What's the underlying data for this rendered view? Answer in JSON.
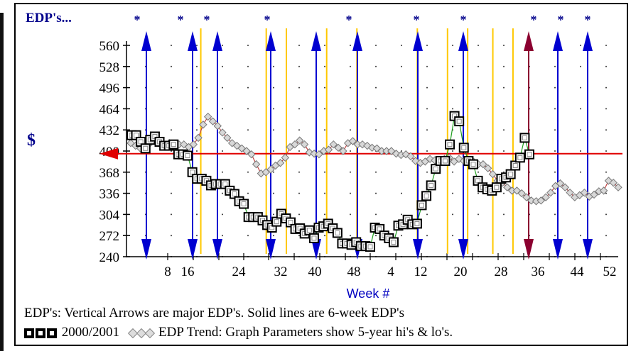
{
  "chart_data": {
    "type": "line",
    "title": "EDP's...",
    "ylabel": "$",
    "xlabel": "Week #",
    "ylim": [
      240,
      560
    ],
    "xlim": [
      0,
      52
    ],
    "y_ticks": [
      "560",
      "528",
      "496",
      "464",
      "432",
      "400",
      "368",
      "336",
      "304",
      "272",
      "240"
    ],
    "x_ticks": [
      "8",
      "16",
      "24",
      "32",
      "40",
      "48",
      "4",
      "12",
      "20",
      "28",
      "36",
      "44",
      "52"
    ],
    "reference_line": 396,
    "star_marks": [
      "*",
      "*",
      "*",
      "*",
      "*",
      "*",
      "*",
      "*",
      "*",
      "*",
      "*"
    ],
    "colors": {
      "title": "#00008b",
      "arrow": "#0000d0",
      "arrow_major": "#8b0030",
      "vline": "#ffc800",
      "reference": "#e00000",
      "xlabel": "#0000c0"
    },
    "series": [
      {
        "name": "2000/2001",
        "marker": "square",
        "values": [
          424,
          424,
          414,
          404,
          417,
          422,
          414,
          408,
          408,
          410,
          395,
          395,
          393,
          368,
          358,
          358,
          355,
          348,
          350,
          350,
          350,
          340,
          335,
          324,
          320,
          300,
          300,
          300,
          295,
          288,
          284,
          293,
          305,
          298,
          292,
          282,
          283,
          275,
          280,
          268,
          284,
          286,
          290,
          283,
          276,
          260,
          260,
          258,
          262,
          256,
          256,
          255,
          284,
          282,
          272,
          268,
          262,
          287,
          289,
          296,
          289,
          290,
          318,
          332,
          348,
          373,
          385,
          385,
          410,
          453,
          445,
          405,
          385,
          380,
          355,
          345,
          342,
          340,
          345,
          358,
          360,
          365,
          378,
          390,
          420,
          395
        ]
      },
      {
        "name": "EDP Trend",
        "marker": "diamond",
        "values": [
          412,
          408,
          404,
          408,
          412,
          416,
          412,
          408,
          412,
          410,
          410,
          410,
          406,
          410,
          420,
          440,
          452,
          445,
          438,
          428,
          420,
          412,
          408,
          404,
          400,
          395,
          380,
          366,
          368,
          372,
          378,
          382,
          390,
          406,
          410,
          416,
          410,
          398,
          396,
          395,
          400,
          402,
          410,
          405,
          400,
          412,
          415,
          410,
          410,
          408,
          405,
          404,
          400,
          400,
          400,
          396,
          394,
          395,
          392,
          385,
          382,
          384,
          388,
          386,
          384,
          388,
          390,
          384,
          388,
          385,
          386,
          384,
          380,
          380,
          374,
          365,
          355,
          352,
          345,
          340,
          340,
          336,
          330,
          325,
          324,
          325,
          330,
          337,
          347,
          351,
          345,
          337,
          330,
          333,
          337,
          331,
          334,
          339,
          340,
          355,
          352,
          345
        ]
      }
    ],
    "major_arrows_x": [
      3,
      12,
      16,
      30,
      39,
      48,
      58,
      65,
      75,
      80,
      84
    ],
    "six_week_lines_x": [
      11,
      24,
      28,
      36,
      42,
      54,
      60,
      64,
      69,
      73
    ],
    "star_x": [
      3,
      12,
      16,
      30,
      48,
      58,
      65,
      75,
      80,
      84,
      90
    ]
  },
  "captions": {
    "line1": "EDP's: Vertical Arrows are major EDP's.  Solid lines are 6-week EDP's",
    "series1_label": "2000/2001",
    "series2_label": "EDP Trend:  Graph Parameters show 5-year hi's & lo's."
  }
}
